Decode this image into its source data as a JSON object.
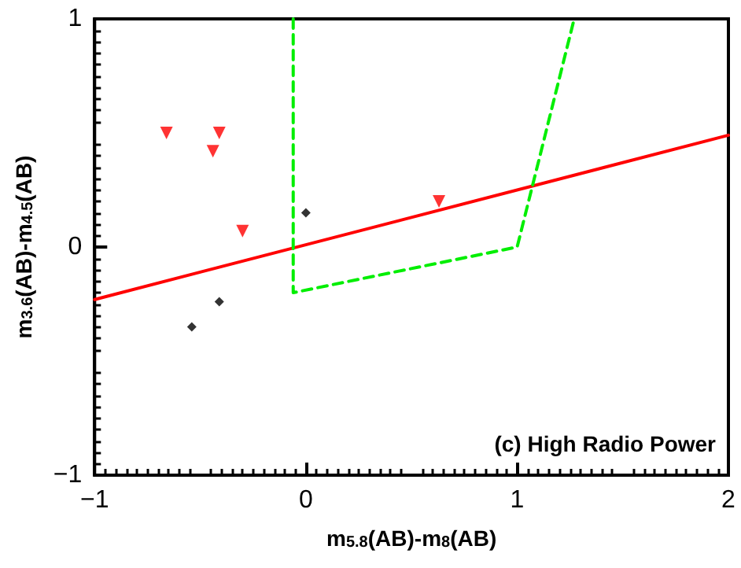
{
  "chart_data": {
    "type": "scatter",
    "xlabel": "m$_{5.8}$(AB)-m$_{8}$(AB)",
    "ylabel": "m$_{3.6}$(AB)-m$_{4.5}$(AB)",
    "annotations": [
      "(c) High Radio Power"
    ],
    "xlim": [
      -1,
      2
    ],
    "xticks": [
      -1,
      0,
      1,
      2
    ],
    "ylim": [
      -1,
      1
    ],
    "yticks": [
      -1,
      0,
      1
    ],
    "grid": false,
    "series": [
      {
        "color": "#000000",
        "marker": "diamond",
        "x": [
          0.0,
          -0.41,
          -0.54
        ],
        "values": [
          0.15,
          -0.24,
          -0.35
        ]
      },
      {
        "color": "#ff0000",
        "marker": "triangle",
        "x": [
          -0.66,
          -0.41,
          -0.44,
          -0.3,
          0.63
        ],
        "values": [
          0.5,
          0.5,
          0.42,
          0.07,
          0.2
        ]
      },
      {
        "type": "line",
        "color": "#ff0000",
        "marker": "none",
        "line_style": "solid",
        "x": [
          -1,
          2
        ],
        "values": [
          -0.23,
          0.49
        ]
      },
      {
        "type": "line",
        "color": "#00ee00",
        "marker": "none",
        "line_style": "dashed",
        "x": [
          -0.06,
          -0.06,
          1.0,
          1.27
        ],
        "values": [
          1.0,
          -0.2,
          0.0,
          1.0
        ]
      }
    ]
  }
}
